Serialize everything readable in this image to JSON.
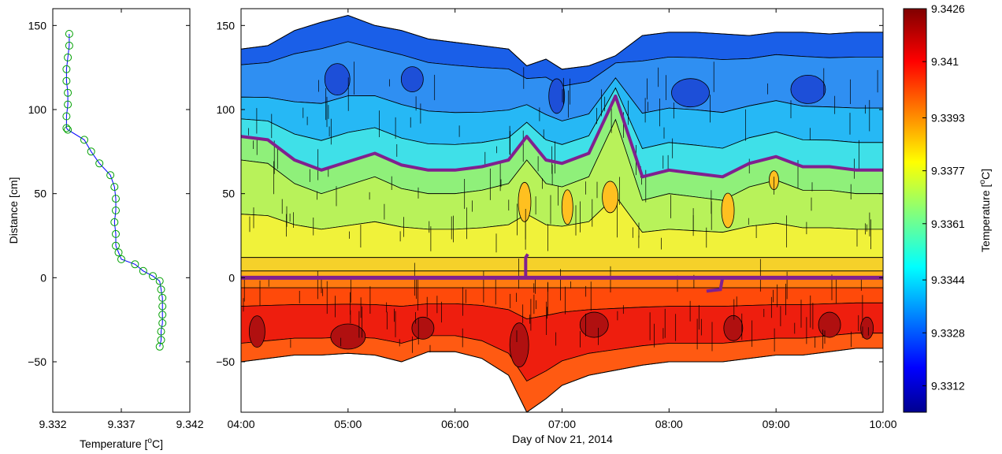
{
  "chart_data": [
    {
      "type": "line",
      "xlabel": "Temperature [oC]",
      "ylabel": "Distance [cm]",
      "xlim": [
        9.332,
        9.342
      ],
      "ylim": [
        -80,
        160
      ],
      "xticks": [
        "9.332",
        "9.337",
        "9.342"
      ],
      "yticks": [
        "150",
        "100",
        "50",
        "0",
        "−50"
      ],
      "grid": false,
      "line_color": "#0000ff",
      "marker_color": "#00a000",
      "series": [
        {
          "x": [
            9.3332,
            9.3332,
            9.3331,
            9.333,
            9.333,
            9.3331,
            9.3331,
            9.333,
            9.333,
            9.3331,
            9.3343,
            9.3348,
            9.3354,
            9.3362,
            9.3365,
            9.3366,
            9.3366,
            9.3365,
            9.3366,
            9.3366,
            9.3368,
            9.337,
            9.338,
            9.3386,
            9.3393,
            9.3398,
            9.3399,
            9.34,
            9.34,
            9.34,
            9.34,
            9.3399,
            9.3399,
            9.3398
          ],
          "y": [
            145,
            138,
            131,
            124,
            117,
            110,
            103,
            96,
            89,
            88,
            82,
            75,
            68,
            61,
            54,
            47,
            40,
            33,
            26,
            19,
            15,
            11,
            8,
            4,
            1,
            -2,
            -7,
            -12,
            -17,
            -22,
            -27,
            -32,
            -37,
            -41
          ]
        }
      ]
    },
    {
      "type": "heatmap",
      "xlabel": "Day of Nov 21, 2014",
      "xlim": [
        4,
        10
      ],
      "ylim": [
        -80,
        160
      ],
      "xticks": [
        "04:00",
        "05:00",
        "06:00",
        "07:00",
        "08:00",
        "09:00",
        "10:00"
      ],
      "yticks": [
        "150",
        "100",
        "50",
        "0",
        "−50"
      ],
      "x_hours": [
        4,
        4.25,
        4.5,
        4.75,
        5,
        5.25,
        5.5,
        5.75,
        6,
        6.25,
        6.5,
        6.67,
        6.85,
        7,
        7.25,
        7.5,
        7.75,
        8,
        8.25,
        8.5,
        8.75,
        9,
        9.25,
        9.5,
        9.75,
        10
      ],
      "top_boundary_cm": [
        136,
        138,
        147,
        152,
        156,
        150,
        147,
        142,
        140,
        138,
        136,
        126,
        130,
        124,
        126,
        132,
        144,
        146,
        146,
        145,
        144,
        146,
        146,
        145,
        146,
        146
      ],
      "bottom_boundary_cm": [
        -50,
        -48,
        -46,
        -46,
        -45,
        -46,
        -50,
        -44,
        -44,
        -48,
        -58,
        -80,
        -72,
        -64,
        -58,
        -55,
        -52,
        -50,
        -50,
        -50,
        -48,
        -46,
        -46,
        -44,
        -42,
        -42
      ],
      "isotherm_cm": [
        84,
        82,
        70,
        64,
        69,
        74,
        67,
        64,
        64,
        66,
        70,
        84,
        70,
        68,
        74,
        108,
        60,
        64,
        62,
        60,
        68,
        72,
        66,
        66,
        64,
        64
      ],
      "zero_line_cm": 0,
      "colorbar": {
        "label": "Temperature [oC]",
        "min": 9.3304,
        "max": 9.3426,
        "ticks": [
          "9.3426",
          "9.341",
          "9.3393",
          "9.3377",
          "9.3361",
          "9.3344",
          "9.3328",
          "9.3312"
        ],
        "colormap": "jet"
      },
      "colors": {
        "isotherm": "#80208f",
        "contour_lines": "#000000"
      }
    }
  ]
}
